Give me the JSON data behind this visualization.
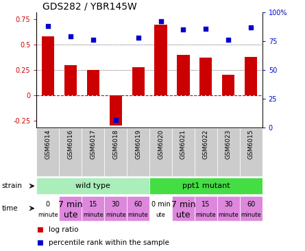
{
  "title": "GDS282 / YBR145W",
  "samples": [
    "GSM6014",
    "GSM6016",
    "GSM6017",
    "GSM6018",
    "GSM6019",
    "GSM6020",
    "GSM6021",
    "GSM6022",
    "GSM6023",
    "GSM6015"
  ],
  "log_ratio": [
    0.58,
    0.3,
    0.25,
    -0.3,
    0.28,
    0.7,
    0.4,
    0.37,
    0.2,
    0.38
  ],
  "percentile": [
    88,
    79,
    76,
    7,
    78,
    92,
    85,
    86,
    76,
    87
  ],
  "ylim_left": [
    -0.32,
    0.82
  ],
  "ylim_right": [
    0,
    100
  ],
  "yticks_left": [
    -0.25,
    0.0,
    0.25,
    0.5,
    0.75
  ],
  "yticks_right": [
    0,
    25,
    50,
    75,
    100
  ],
  "bar_color": "#cc0000",
  "dot_color": "#0000cc",
  "bar_width": 0.55,
  "strain_groups": [
    {
      "text": "wild type",
      "start": 0,
      "end": 5,
      "color": "#aaeebb"
    },
    {
      "text": "ppt1 mutant",
      "start": 5,
      "end": 10,
      "color": "#44dd44"
    }
  ],
  "time_cells": [
    {
      "line1": "0",
      "line2": "minute",
      "size1": 7,
      "size2": 6,
      "color": "#ffffff"
    },
    {
      "line1": "7 min",
      "line2": "ute",
      "size1": 9,
      "size2": 9,
      "color": "#dd88dd"
    },
    {
      "line1": "15",
      "line2": "minute",
      "size1": 7,
      "size2": 6,
      "color": "#dd88dd"
    },
    {
      "line1": "30",
      "line2": "minute",
      "size1": 7,
      "size2": 6,
      "color": "#dd88dd"
    },
    {
      "line1": "60",
      "line2": "minute",
      "size1": 7,
      "size2": 6,
      "color": "#dd88dd"
    },
    {
      "line1": "0 min",
      "line2": "ute",
      "size1": 7,
      "size2": 6,
      "color": "#ffffff"
    },
    {
      "line1": "7 min",
      "line2": "ute",
      "size1": 9,
      "size2": 9,
      "color": "#dd88dd"
    },
    {
      "line1": "15",
      "line2": "minute",
      "size1": 7,
      "size2": 6,
      "color": "#dd88dd"
    },
    {
      "line1": "30",
      "line2": "minute",
      "size1": 7,
      "size2": 6,
      "color": "#dd88dd"
    },
    {
      "line1": "60",
      "line2": "minute",
      "size1": 7,
      "size2": 6,
      "color": "#dd88dd"
    }
  ],
  "legend_red_label": "log ratio",
  "legend_blue_label": "percentile rank within the sample",
  "bg_color": "#ffffff",
  "tick_color_left": "#cc0000",
  "tick_color_right": "#0000cc",
  "xtick_bg": "#cccccc",
  "xtick_border": "#aaaaaa"
}
